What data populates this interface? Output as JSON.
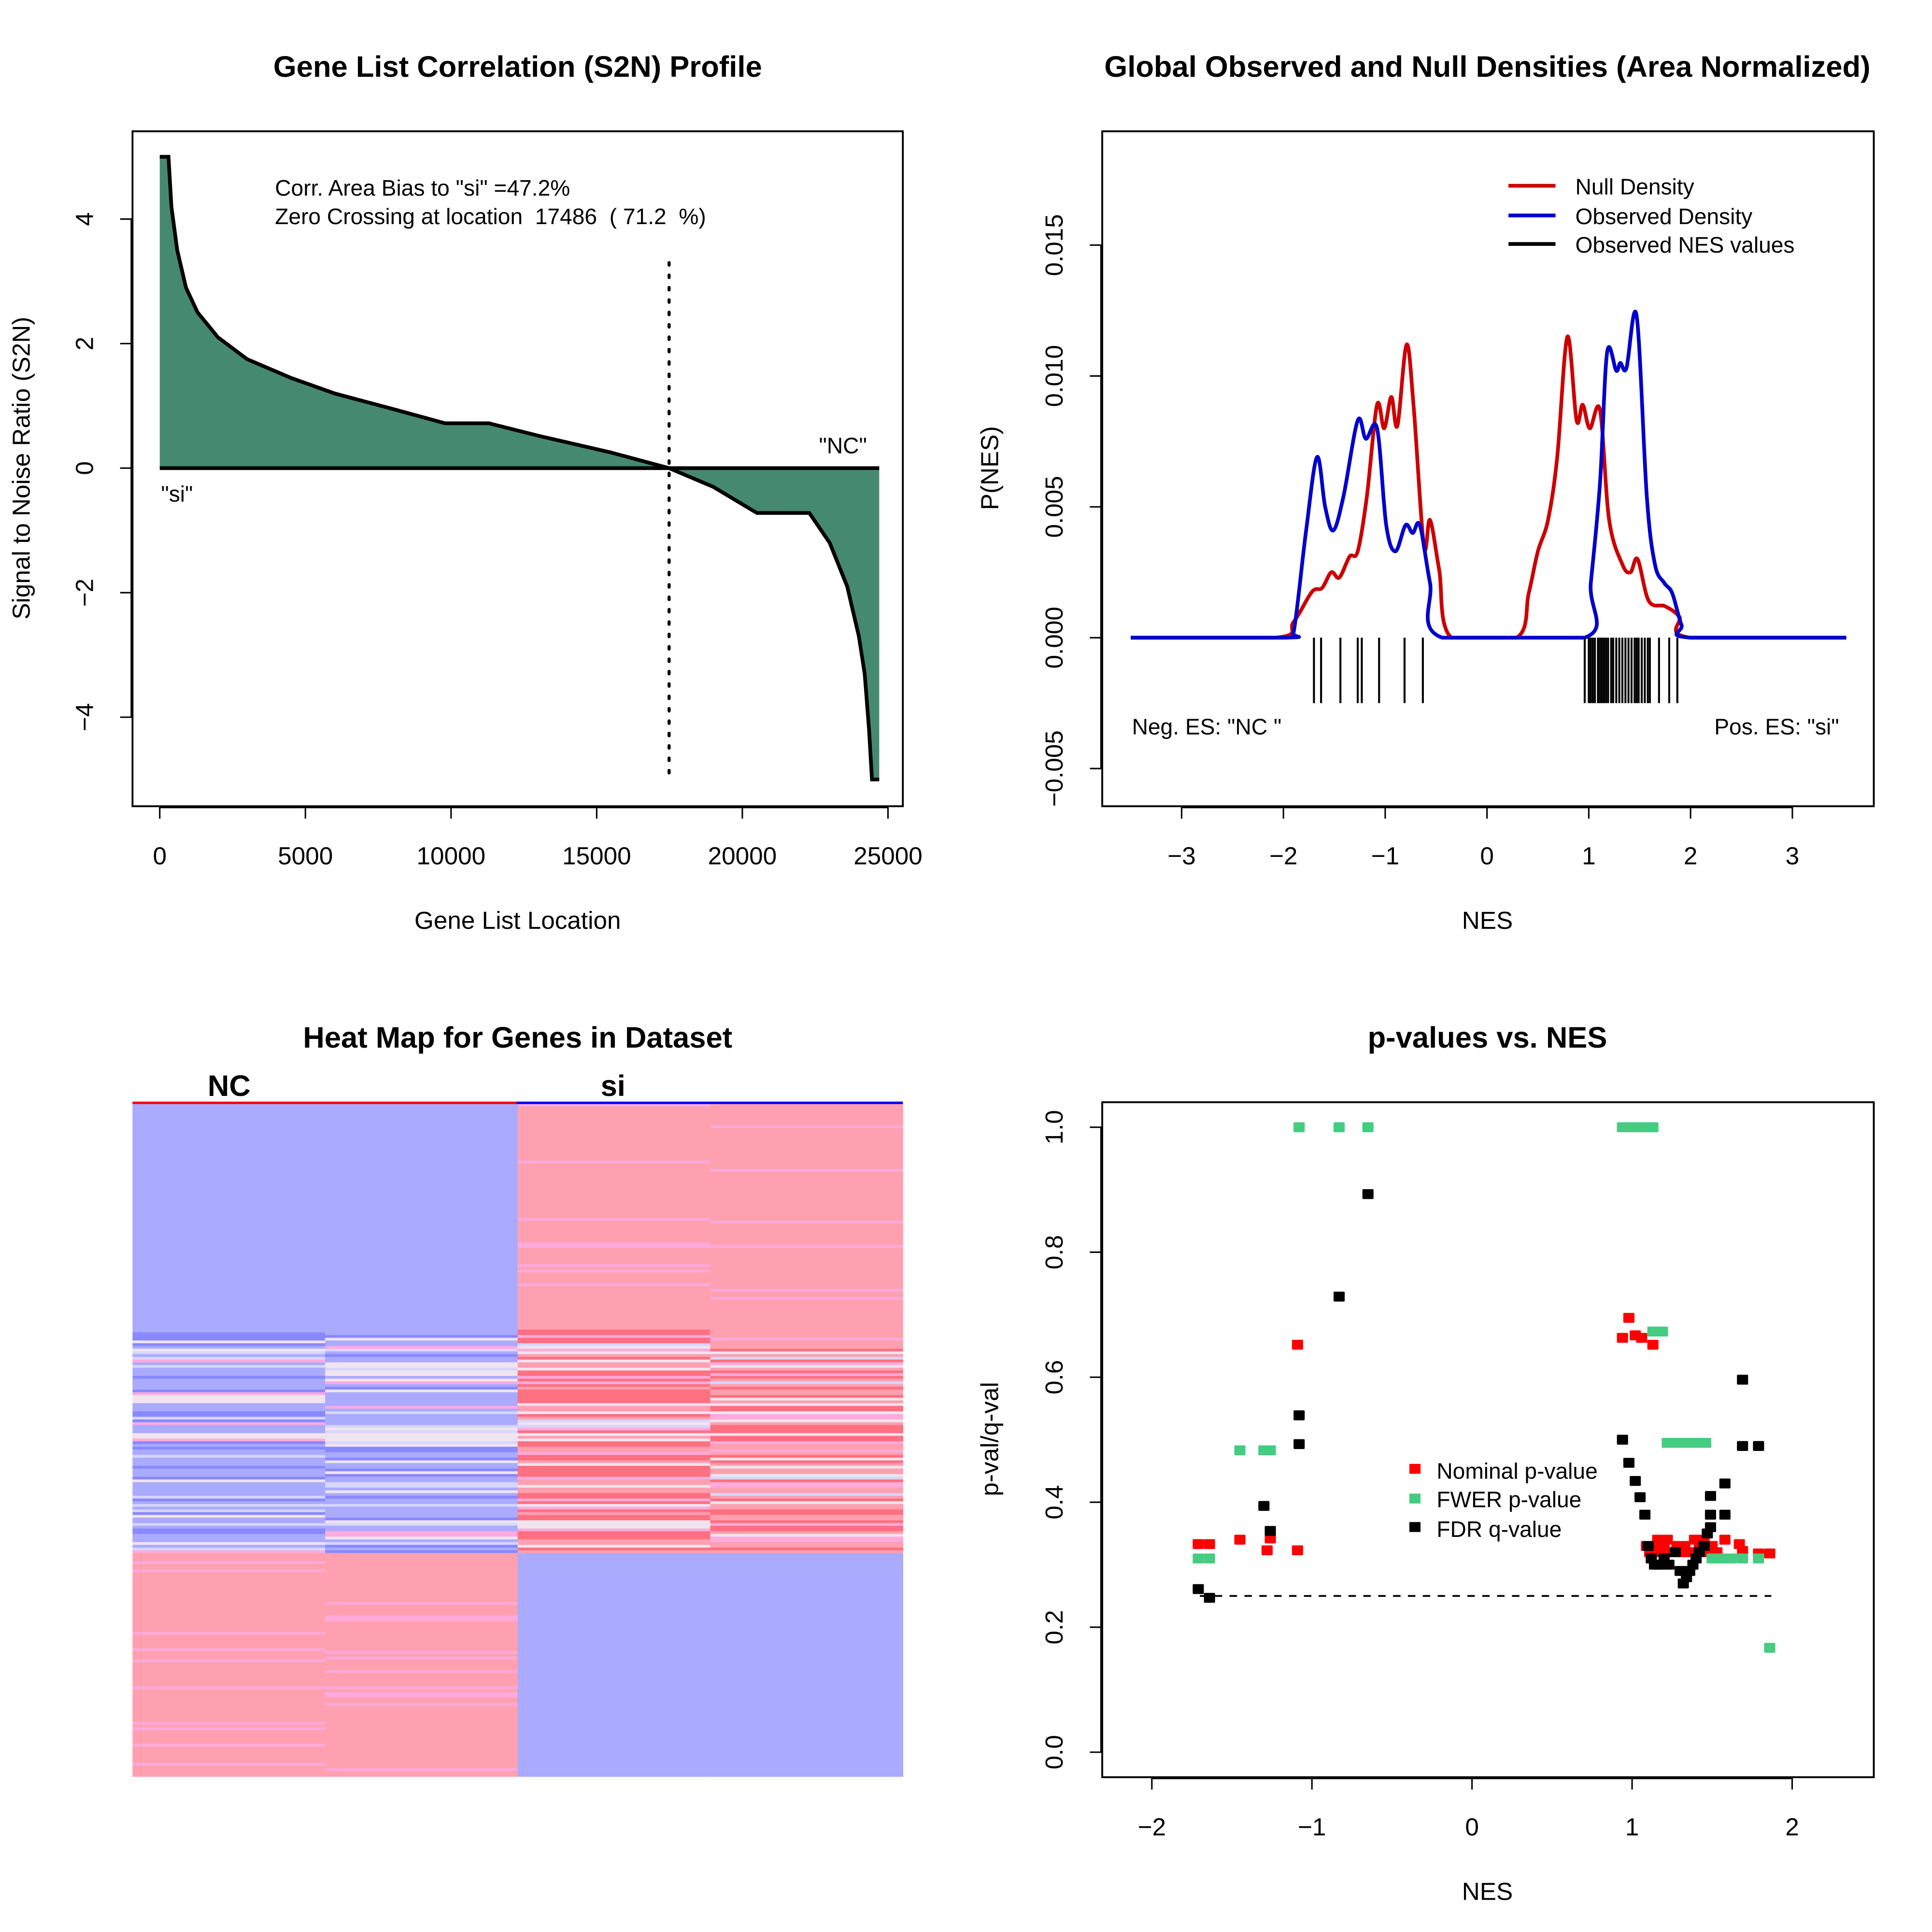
{
  "chart_data": [
    {
      "type": "area",
      "title": "Gene List Correlation (S2N) Profile",
      "xlabel": "Gene List Location",
      "ylabel": "Signal to Noise Ratio (S2N)",
      "xlim": [
        -935,
        25510
      ],
      "ylim": [
        -5.43,
        5.41
      ],
      "xticks": [
        0,
        5000,
        10000,
        15000,
        20000,
        25000
      ],
      "yticks": [
        -4,
        -2,
        0,
        2,
        4
      ],
      "fill_color": "#458a70",
      "x": [
        0,
        300,
        400,
        600,
        900,
        1300,
        2000,
        3000,
        4500,
        6000,
        8000,
        9800,
        11300,
        13000,
        15500,
        17486,
        19000,
        20500,
        22300,
        23000,
        23600,
        24000,
        24200,
        24350,
        24450,
        24700
      ],
      "y": [
        5,
        5,
        4.2,
        3.5,
        2.9,
        2.5,
        2.1,
        1.75,
        1.45,
        1.2,
        0.95,
        0.72,
        0.72,
        0.52,
        0.25,
        0,
        -0.3,
        -0.72,
        -0.72,
        -1.2,
        -1.9,
        -2.7,
        -3.3,
        -4.2,
        -5,
        -5
      ],
      "zero_crossing": 17486,
      "annotations": {
        "bias": "Corr. Area Bias to \"si\" =47.2%",
        "crossing": "Zero Crossing at location  17486  ( 71.2  %)",
        "pos_label": "\"si\"",
        "neg_label": "\"NC\""
      }
    },
    {
      "type": "line",
      "title": "Global Observed and Null Densities (Area Normalized)",
      "xlabel": "NES",
      "ylabel": "P(NES)",
      "xlim": [
        -3.78,
        3.8
      ],
      "ylim": [
        -0.00644,
        0.01935
      ],
      "xticks": [
        -3,
        -2,
        -1,
        0,
        1,
        2,
        3
      ],
      "yticks": [
        -0.005,
        0.0,
        0.005,
        0.01,
        0.015
      ],
      "ytick_labels": [
        "−0.005",
        "0.000",
        "0.005",
        "0.010",
        "0.015"
      ],
      "legend": "top-right",
      "series": [
        {
          "name": "Null Density",
          "color": "#cc0000",
          "x": [
            -3.5,
            -2.08,
            -1.9,
            -1.72,
            -1.62,
            -1.53,
            -1.45,
            -1.35,
            -1.27,
            -1.18,
            -1.08,
            -1.01,
            -0.94,
            -0.88,
            -0.79,
            -0.72,
            -0.62,
            -0.56,
            -0.47,
            -0.35,
            0.29,
            0.41,
            0.5,
            0.6,
            0.69,
            0.79,
            0.88,
            0.94,
            1.01,
            1.11,
            1.2,
            1.33,
            1.41,
            1.48,
            1.59,
            1.75,
            1.89,
            2.0,
            3.53
          ],
          "y": [
            0,
            0,
            0.0006,
            0.00175,
            0.0019,
            0.0025,
            0.0023,
            0.0031,
            0.0033,
            0.0054,
            0.0089,
            0.008,
            0.0092,
            0.0081,
            0.0112,
            0.0088,
            0.0035,
            0.0045,
            0.0026,
            0,
            0,
            0.0017,
            0.0033,
            0.0045,
            0.0069,
            0.0115,
            0.0083,
            0.0089,
            0.008,
            0.0087,
            0.0045,
            0.0028,
            0.0025,
            0.003,
            0.0014,
            0.0012,
            0.0008,
            0,
            0
          ]
        },
        {
          "name": "Observed Density",
          "color": "#0000cc",
          "x": [
            -3.5,
            -1.98,
            -1.9,
            -1.78,
            -1.67,
            -1.59,
            -1.51,
            -1.41,
            -1.27,
            -1.19,
            -1.08,
            -0.99,
            -0.9,
            -0.8,
            -0.73,
            -0.66,
            -0.56,
            -0.44,
            0.96,
            1.02,
            1.11,
            1.18,
            1.27,
            1.31,
            1.37,
            1.47,
            1.57,
            1.65,
            1.74,
            1.82,
            1.91,
            2.0,
            3.53
          ],
          "y": [
            0,
            0,
            0.0002,
            0.004,
            0.0069,
            0.005,
            0.0041,
            0.0054,
            0.0083,
            0.0076,
            0.008,
            0.0043,
            0.0033,
            0.0043,
            0.004,
            0.0043,
            0.0021,
            0,
            0,
            0.0021,
            0.0059,
            0.0109,
            0.0102,
            0.0105,
            0.0103,
            0.0123,
            0.0054,
            0.0028,
            0.0021,
            0.0017,
            0.0005,
            0,
            0
          ]
        },
        {
          "name": "Observed NES values",
          "color": "#000000",
          "values": [
            -1.7,
            -1.63,
            -1.44,
            -1.27,
            -1.23,
            -1.06,
            -0.81,
            -0.63,
            0.96,
            1.0,
            1.02,
            1.04,
            1.06,
            1.09,
            1.1,
            1.12,
            1.13,
            1.15,
            1.17,
            1.19,
            1.22,
            1.24,
            1.27,
            1.3,
            1.33,
            1.36,
            1.39,
            1.42,
            1.45,
            1.47,
            1.49,
            1.52,
            1.55,
            1.58,
            1.6,
            1.69,
            1.79,
            1.87
          ]
        }
      ],
      "annotations": {
        "neg": "Neg. ES: \"NC \"",
        "pos": "Pos. ES: \"si\""
      }
    },
    {
      "type": "heatmap",
      "title": "Heat Map for Genes in Dataset",
      "groups": [
        {
          "label": "NC",
          "color": "#ff0000"
        },
        {
          "label": "si",
          "color": "#0000ff"
        }
      ],
      "palette": {
        "blue": "#aaaaff",
        "light_blue": "#d6d6ff",
        "dark_blue": "#8888ff",
        "neutral": "#f0e4ee",
        "pink": "#ffa0b0",
        "light_pink": "#ffaadd",
        "red": "#ff7080"
      }
    },
    {
      "type": "scatter",
      "title": "p-values vs. NES",
      "xlabel": "NES",
      "ylabel": "p-val/q-val",
      "xlim": [
        -2.31,
        2.51
      ],
      "ylim": [
        -0.04,
        1.04
      ],
      "xticks": [
        -2,
        -1,
        0,
        1,
        2
      ],
      "yticks": [
        0.0,
        0.2,
        0.4,
        0.6,
        0.8,
        1.0
      ],
      "ytick_labels": [
        "0.0",
        "0.2",
        "0.4",
        "0.6",
        "0.8",
        "1.0"
      ],
      "legend": "center",
      "threshold": {
        "y": 0.25,
        "x_from": -1.7,
        "x_to": 1.87
      },
      "series": [
        {
          "name": "Nominal p-value",
          "color": "#ff0000",
          "points": [
            [
              -1.71,
              0.333
            ],
            [
              -1.64,
              0.333
            ],
            [
              -1.45,
              0.34
            ],
            [
              -1.28,
              0.323
            ],
            [
              -1.26,
              0.342
            ],
            [
              -1.09,
              0.323
            ],
            [
              -1.09,
              0.652
            ],
            [
              0.94,
              0.663
            ],
            [
              0.98,
              0.695
            ],
            [
              1.02,
              0.667
            ],
            [
              1.06,
              0.663
            ],
            [
              1.13,
              0.652
            ],
            [
              1.09,
              0.33
            ],
            [
              1.11,
              0.32
            ],
            [
              1.14,
              0.33
            ],
            [
              1.16,
              0.34
            ],
            [
              1.18,
              0.32
            ],
            [
              1.2,
              0.33
            ],
            [
              1.22,
              0.34
            ],
            [
              1.25,
              0.32
            ],
            [
              1.28,
              0.33
            ],
            [
              1.3,
              0.32
            ],
            [
              1.33,
              0.33
            ],
            [
              1.36,
              0.32
            ],
            [
              1.39,
              0.34
            ],
            [
              1.42,
              0.33
            ],
            [
              1.45,
              0.34
            ],
            [
              1.47,
              0.32
            ],
            [
              1.5,
              0.33
            ],
            [
              1.53,
              0.32
            ],
            [
              1.58,
              0.34
            ],
            [
              1.67,
              0.333
            ],
            [
              1.69,
              0.322
            ],
            [
              1.79,
              0.318
            ],
            [
              1.86,
              0.318
            ]
          ]
        },
        {
          "name": "FWER p-value",
          "color": "#44cc80",
          "points": [
            [
              -1.71,
              0.31
            ],
            [
              -1.64,
              0.31
            ],
            [
              -1.45,
              0.483
            ],
            [
              -1.3,
              0.483
            ],
            [
              -1.26,
              0.483
            ],
            [
              -1.08,
              1
            ],
            [
              -0.83,
              1
            ],
            [
              -0.65,
              1
            ],
            [
              0.94,
              1
            ],
            [
              0.98,
              1
            ],
            [
              1.02,
              1
            ],
            [
              1.06,
              1
            ],
            [
              1.1,
              1
            ],
            [
              1.13,
              1
            ],
            [
              1.13,
              0.673
            ],
            [
              1.19,
              0.673
            ],
            [
              1.22,
              0.495
            ],
            [
              1.28,
              0.495
            ],
            [
              1.34,
              0.495
            ],
            [
              1.4,
              0.495
            ],
            [
              1.46,
              0.495
            ],
            [
              1.5,
              0.31
            ],
            [
              1.56,
              0.31
            ],
            [
              1.62,
              0.31
            ],
            [
              1.69,
              0.31
            ],
            [
              1.79,
              0.31
            ],
            [
              1.86,
              0.167
            ]
          ]
        },
        {
          "name": "FDR q-value",
          "color": "#000000",
          "points": [
            [
              -1.71,
              0.261
            ],
            [
              -1.64,
              0.247
            ],
            [
              -1.3,
              0.394
            ],
            [
              -1.26,
              0.354
            ],
            [
              -1.08,
              0.539
            ],
            [
              -1.08,
              0.493
            ],
            [
              -0.83,
              0.729
            ],
            [
              -0.65,
              0.893
            ],
            [
              0.94,
              0.5
            ],
            [
              0.98,
              0.463
            ],
            [
              1.02,
              0.434
            ],
            [
              1.05,
              0.408
            ],
            [
              1.08,
              0.38
            ],
            [
              1.1,
              0.33
            ],
            [
              1.12,
              0.31
            ],
            [
              1.14,
              0.3
            ],
            [
              1.17,
              0.3
            ],
            [
              1.2,
              0.31
            ],
            [
              1.23,
              0.3
            ],
            [
              1.27,
              0.32
            ],
            [
              1.3,
              0.29
            ],
            [
              1.32,
              0.27
            ],
            [
              1.34,
              0.28
            ],
            [
              1.36,
              0.29
            ],
            [
              1.38,
              0.3
            ],
            [
              1.4,
              0.31
            ],
            [
              1.42,
              0.32
            ],
            [
              1.45,
              0.33
            ],
            [
              1.47,
              0.35
            ],
            [
              1.49,
              0.36
            ],
            [
              1.49,
              0.38
            ],
            [
              1.49,
              0.41
            ],
            [
              1.58,
              0.38
            ],
            [
              1.58,
              0.43
            ],
            [
              1.69,
              0.596
            ],
            [
              1.69,
              0.49
            ],
            [
              1.79,
              0.49
            ]
          ]
        }
      ]
    }
  ]
}
